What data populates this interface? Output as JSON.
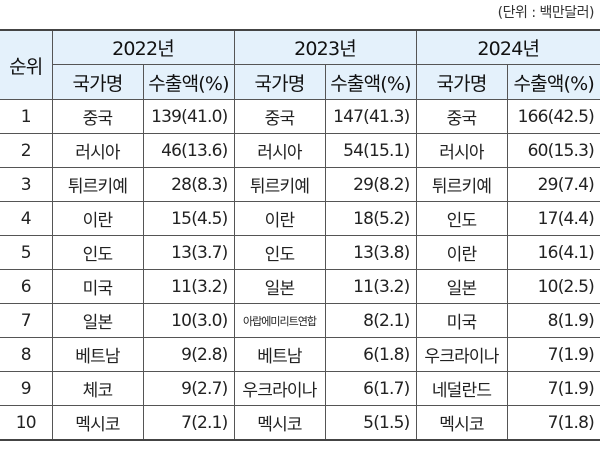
{
  "unit_note": "(단위 : 백만달러)",
  "header": {
    "rank_label": "순위",
    "years": [
      "2022년",
      "2023년",
      "2024년"
    ],
    "country_label": "국가명",
    "export_label": "수출액(%)"
  },
  "rows": [
    {
      "rank": "1",
      "y2022": {
        "country": "중국",
        "value": "139(41.0)"
      },
      "y2023": {
        "country": "중국",
        "value": "147(41.3)"
      },
      "y2024": {
        "country": "중국",
        "value": "166(42.5)"
      }
    },
    {
      "rank": "2",
      "y2022": {
        "country": "러시아",
        "value": "46(13.6)"
      },
      "y2023": {
        "country": "러시아",
        "value": "54(15.1)"
      },
      "y2024": {
        "country": "러시아",
        "value": "60(15.3)"
      }
    },
    {
      "rank": "3",
      "y2022": {
        "country": "튀르키예",
        "value": "28(8.3)"
      },
      "y2023": {
        "country": "튀르키예",
        "value": "29(8.2)"
      },
      "y2024": {
        "country": "튀르키예",
        "value": "29(7.4)"
      }
    },
    {
      "rank": "4",
      "y2022": {
        "country": "이란",
        "value": "15(4.5)"
      },
      "y2023": {
        "country": "이란",
        "value": "18(5.2)"
      },
      "y2024": {
        "country": "인도",
        "value": "17(4.4)"
      }
    },
    {
      "rank": "5",
      "y2022": {
        "country": "인도",
        "value": "13(3.7)"
      },
      "y2023": {
        "country": "인도",
        "value": "13(3.8)"
      },
      "y2024": {
        "country": "이란",
        "value": "16(4.1)"
      }
    },
    {
      "rank": "6",
      "y2022": {
        "country": "미국",
        "value": "11(3.2)"
      },
      "y2023": {
        "country": "일본",
        "value": "11(3.2)"
      },
      "y2024": {
        "country": "일본",
        "value": "10(2.5)"
      }
    },
    {
      "rank": "7",
      "y2022": {
        "country": "일본",
        "value": "10(3.0)"
      },
      "y2023": {
        "country": "아랍에미리트연합",
        "value": "8(2.1)"
      },
      "y2024": {
        "country": "미국",
        "value": "8(1.9)"
      }
    },
    {
      "rank": "8",
      "y2022": {
        "country": "베트남",
        "value": "9(2.8)"
      },
      "y2023": {
        "country": "베트남",
        "value": "6(1.8)"
      },
      "y2024": {
        "country": "우크라이나",
        "value": "7(1.9)"
      }
    },
    {
      "rank": "9",
      "y2022": {
        "country": "체코",
        "value": "9(2.7)"
      },
      "y2023": {
        "country": "우크라이나",
        "value": "6(1.7)"
      },
      "y2024": {
        "country": "네덜란드",
        "value": "7(1.9)"
      }
    },
    {
      "rank": "10",
      "y2022": {
        "country": "멕시코",
        "value": "7(2.1)"
      },
      "y2023": {
        "country": "멕시코",
        "value": "5(1.5)"
      },
      "y2024": {
        "country": "멕시코",
        "value": "7(1.8)"
      }
    }
  ]
}
